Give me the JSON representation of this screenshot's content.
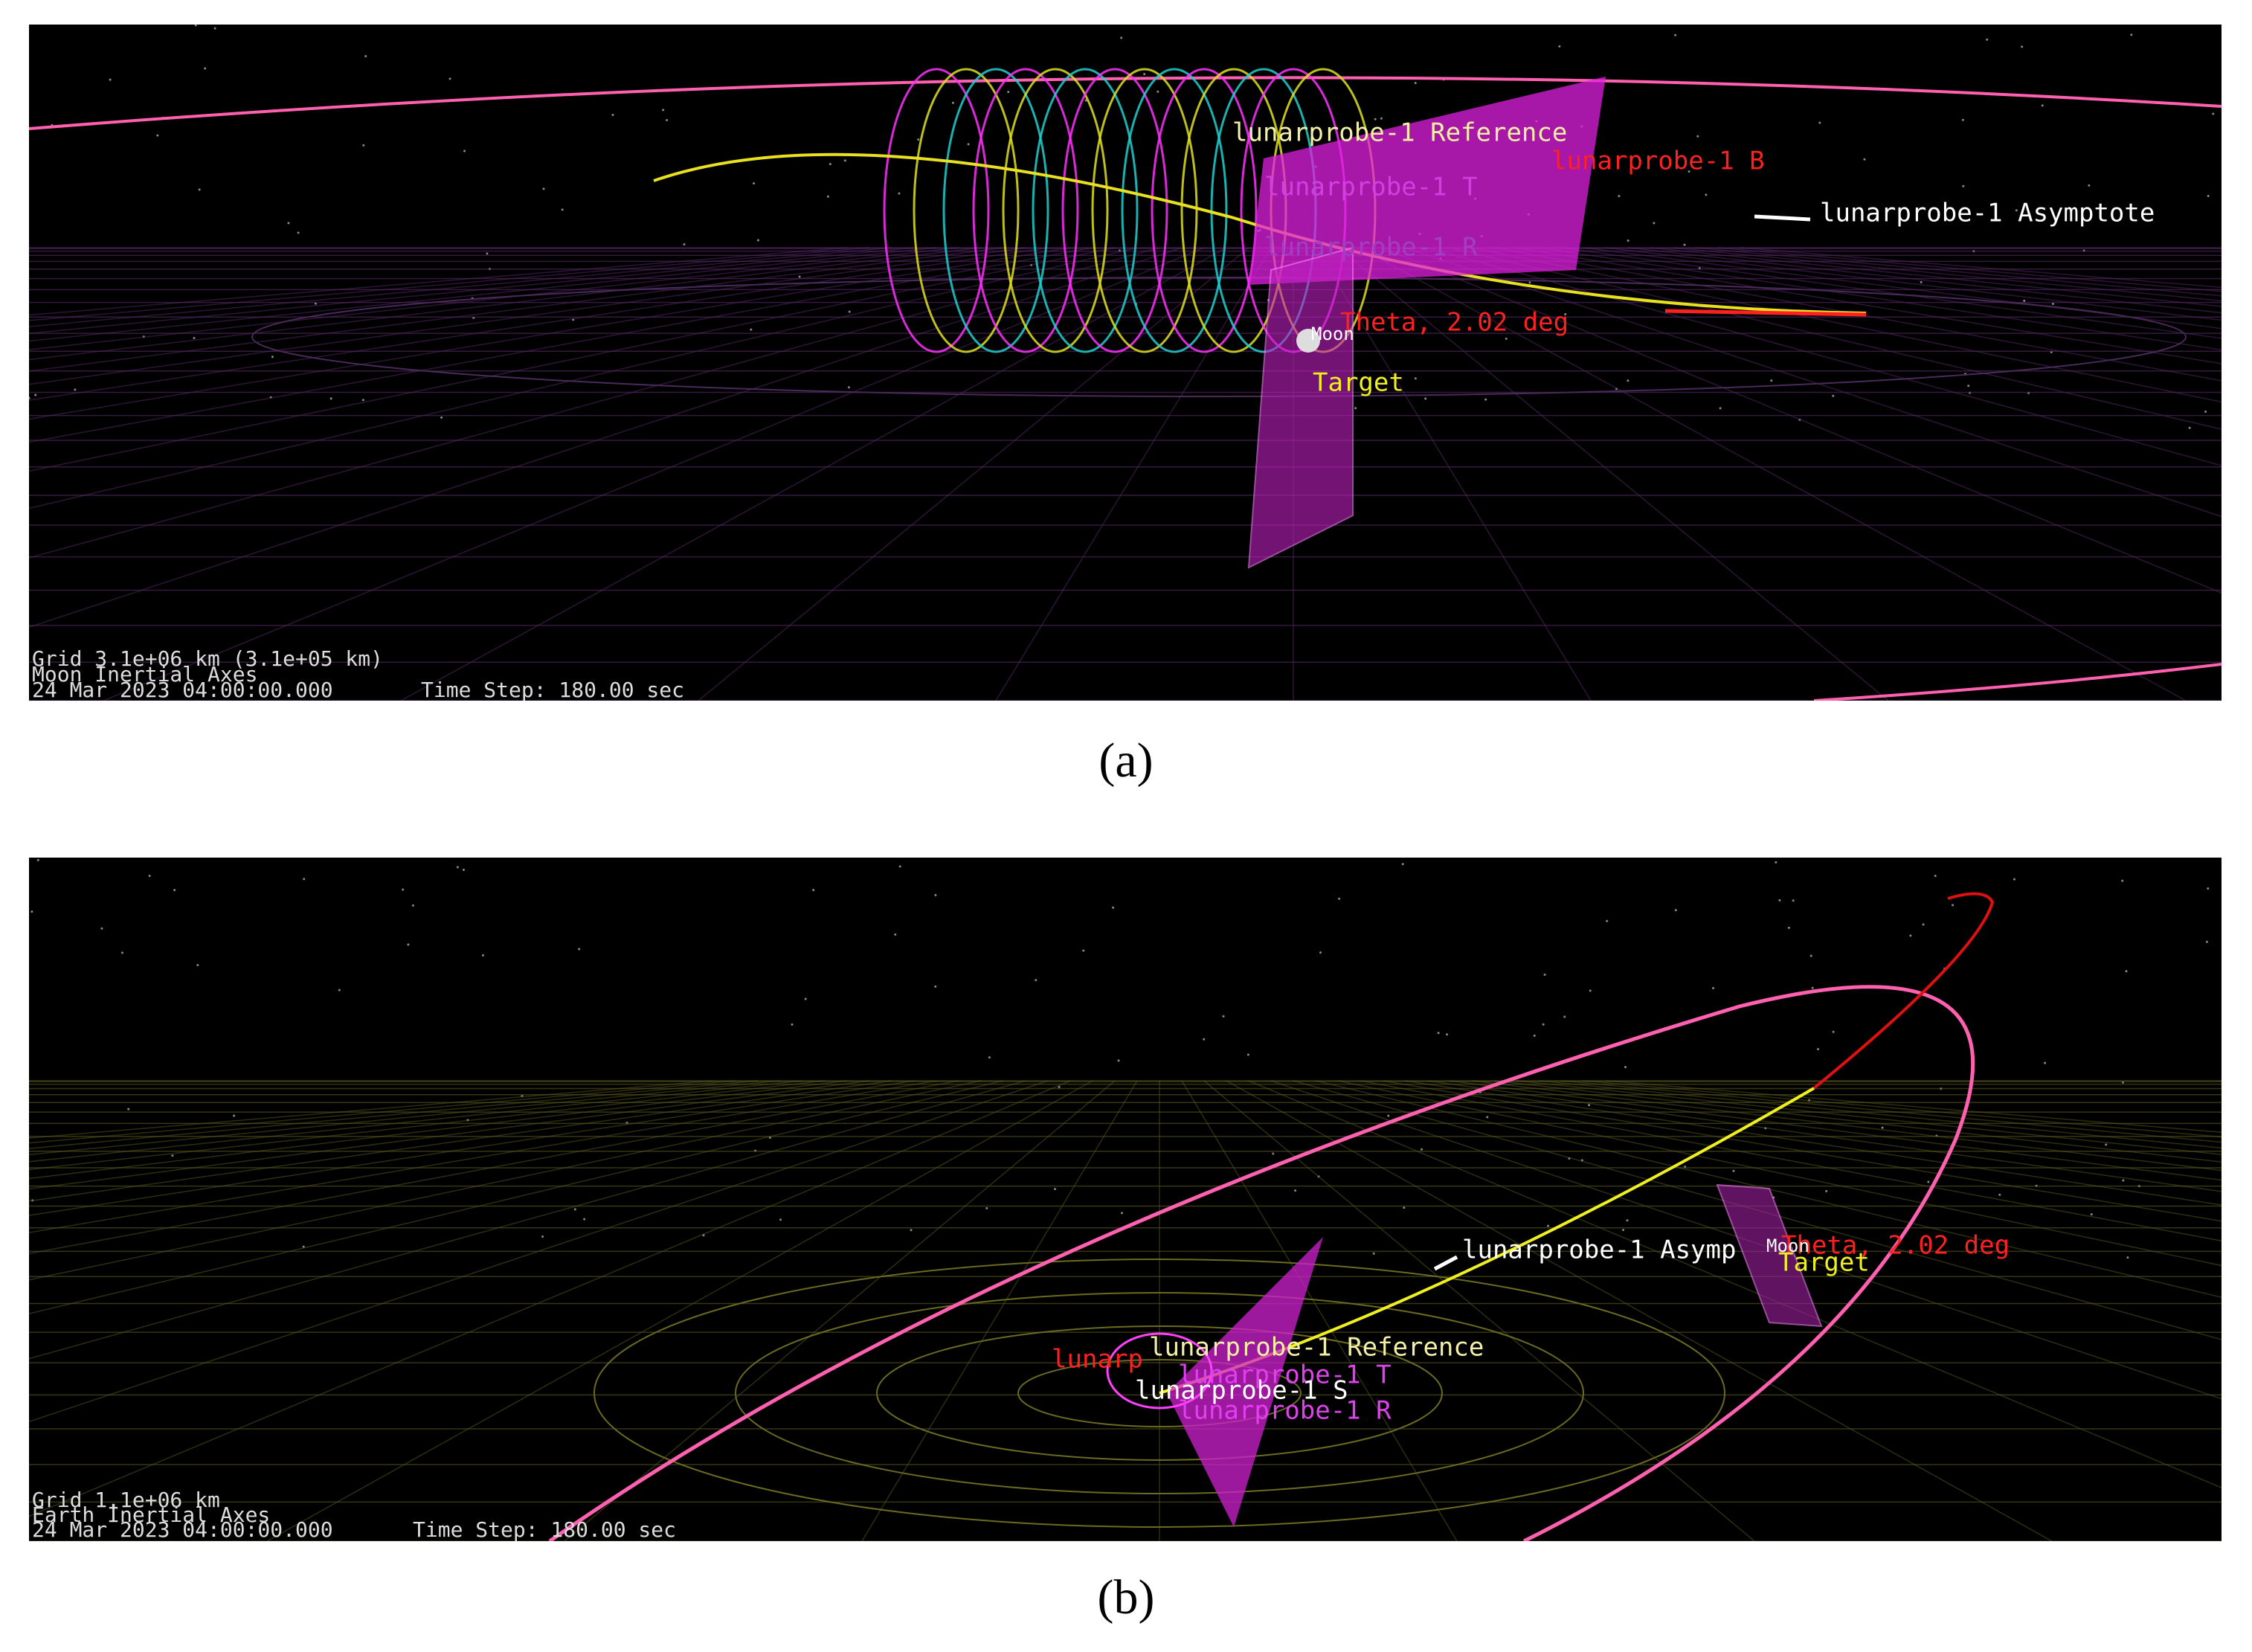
{
  "panels": [
    {
      "caption": "(a)",
      "labels": {
        "reference": "lunarprobe-1 Reference",
        "b": "lunarprobe-1 B",
        "t": "lunarprobe-1 T",
        "r": "lunarprobe-1 R",
        "asymptote": "lunarprobe-1 Asymptote",
        "theta": "Theta, 2.02 deg",
        "moon": "Moon",
        "target": "Target"
      },
      "footer": {
        "grid": "Grid 3.1e+06 km (3.1e+05 km)",
        "axes": "Moon Inertial Axes",
        "date": "24 Mar 2023 04:00:00.000",
        "time_step": "Time Step: 180.00 sec"
      }
    },
    {
      "caption": "(b)",
      "labels": {
        "reference": "lunarprobe-1 Reference",
        "b": "lunarp",
        "t": "lunarprobe-1 T",
        "s": "lunarprobe-1 S",
        "r": "lunarprobe-1 R",
        "asymptote": "lunarprobe-1 Asymp",
        "theta": "Theta, 2.02 deg",
        "moon": "Moon",
        "target": "Target"
      },
      "footer": {
        "grid": "Grid 1.1e+06 km",
        "axes": "Earth Inertial Axes",
        "date": "24 Mar 2023 04:00:00.000",
        "time_step": "Time Step: 180.00 sec"
      }
    }
  ]
}
